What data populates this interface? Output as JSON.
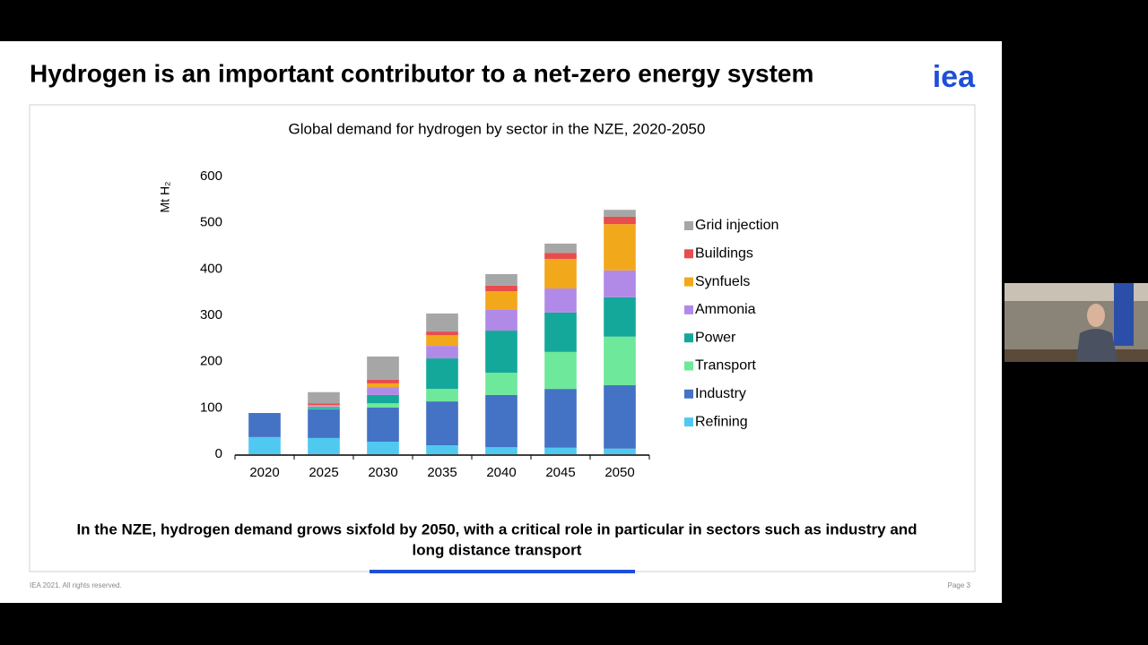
{
  "slide": {
    "title": "Hydrogen is an important contributor to a net-zero energy system",
    "logo": "iea",
    "caption": [
      "In the NZE, hydrogen demand grows sixfold by 2050, with a critical role in particular in sectors such as industry and",
      "long distance transport"
    ],
    "footer": "IEA 2021. All rights reserved.",
    "page": "Page 3"
  },
  "chart_data": {
    "type": "stacked-bar",
    "title": "Global demand for hydrogen by sector in the NZE, 2020-2050",
    "y_label": "Mt H₂",
    "categories": [
      "2020",
      "2025",
      "2030",
      "2035",
      "2040",
      "2045",
      "2050"
    ],
    "series": [
      {
        "name": "Refining",
        "color": "#4fc9f0",
        "values": [
          37,
          35,
          27,
          19,
          15,
          14,
          12
        ]
      },
      {
        "name": "Industry",
        "color": "#4472c4",
        "values": [
          52,
          62,
          74,
          95,
          113,
          127,
          137
        ]
      },
      {
        "name": "Transport",
        "color": "#6ee89a",
        "values": [
          0,
          1,
          9,
          27,
          48,
          80,
          105
        ]
      },
      {
        "name": "Power",
        "color": "#14a89a",
        "values": [
          0,
          3,
          18,
          66,
          91,
          85,
          85
        ]
      },
      {
        "name": "Ammonia",
        "color": "#b18ae8",
        "values": [
          0,
          3,
          17,
          27,
          46,
          52,
          58
        ]
      },
      {
        "name": "Synfuels",
        "color": "#f2a81b",
        "values": [
          0,
          2,
          8,
          23,
          39,
          64,
          100
        ]
      },
      {
        "name": "Buildings",
        "color": "#e84c4c",
        "values": [
          0,
          4,
          8,
          8,
          12,
          13,
          16
        ]
      },
      {
        "name": "Grid injection",
        "color": "#a6a6a6",
        "values": [
          0,
          24,
          50,
          39,
          25,
          20,
          15
        ]
      }
    ],
    "ylim": [
      0,
      600
    ],
    "yticks": [
      0,
      100,
      200,
      300,
      400,
      500,
      600
    ],
    "grid": false,
    "legend": "right"
  }
}
